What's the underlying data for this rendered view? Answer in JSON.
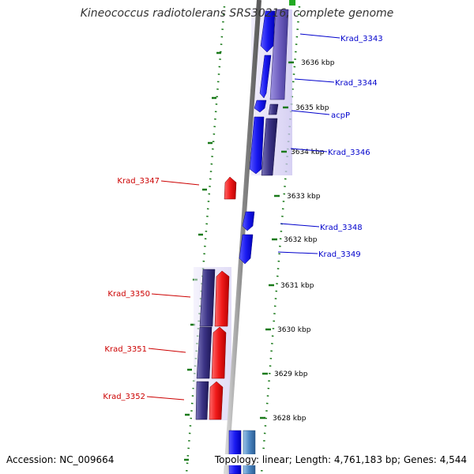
{
  "title": "Kineococcus radiotolerans SRS30216, complete genome",
  "footer": {
    "accession": "Accession: NC_009664",
    "summary": "Topology: linear; Length: 4,761,183 bp; Genes: 4,544"
  },
  "colors": {
    "forward_gene": "#1010ee",
    "reverse_gene": "#ee1010",
    "rna_forward": "#6f5fc0",
    "rna_reverse": "#3c3486",
    "ruler_tick": "#1a7a1a",
    "axis": "#888888",
    "forward_label": "#0000cc",
    "reverse_label": "#cc0000"
  },
  "scale_labels": [
    "3636 kbp",
    "3635 kbp",
    "3634 kbp",
    "3633 kbp",
    "3632 kbp",
    "3631 kbp",
    "3630 kbp",
    "3629 kbp",
    "3628 kbp"
  ],
  "forward_labels": [
    "Krad_3343",
    "Krad_3344",
    "acpP",
    "Krad_3346",
    "Krad_3348",
    "Krad_3349"
  ],
  "reverse_labels": [
    "Krad_3347",
    "Krad_3350",
    "Krad_3351",
    "Krad_3352"
  ]
}
